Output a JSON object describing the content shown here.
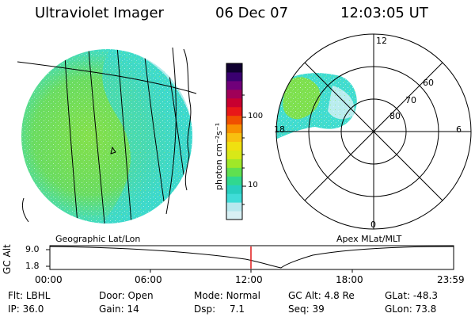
{
  "header": {
    "instrument": "Ultraviolet Imager",
    "date": "06 Dec 07",
    "time": "12:03:05 UT"
  },
  "left_panel": {
    "projection_label": "Geographic Lat/Lon"
  },
  "right_panel": {
    "projection_label": "Apex MLat/MLT",
    "mlt_labels": {
      "top": "12",
      "left": "18",
      "right": "6",
      "bottom": "0"
    },
    "lat_labels": [
      "60",
      "70",
      "80"
    ]
  },
  "colorbar": {
    "unit_label": "photon cm⁻²s⁻¹",
    "ticks": [
      "100",
      "10"
    ],
    "colors": [
      "#d8f0f4",
      "#b8e8ee",
      "#40dcd8",
      "#28cfc0",
      "#30d890",
      "#60e050",
      "#a0e828",
      "#d8e818",
      "#f0e010",
      "#f8c010",
      "#f89000",
      "#f05000",
      "#e81818",
      "#c80030",
      "#a00058",
      "#70007a",
      "#3a0070",
      "#100030"
    ]
  },
  "timeline": {
    "y_axis_label": "GC Alt",
    "y_ticks": [
      "9.0",
      "1.8"
    ],
    "x_ticks": [
      "00:00",
      "06:00",
      "12:00",
      "18:00",
      "23:59"
    ],
    "marker_color": "#e01818"
  },
  "footer": {
    "flt_label": "Flt:",
    "flt_value": "LBHL",
    "ip_label": "IP:",
    "ip_value": "36.0",
    "door_label": "Door:",
    "door_value": "Open",
    "gain_label": "Gain:",
    "gain_value": "14",
    "mode_label": "Mode:",
    "mode_value": "Normal",
    "dsp_label": "Dsp:",
    "dsp_value": "7.1",
    "gcalt_label": "GC Alt:",
    "gcalt_value": "4.8 Re",
    "seq_label": "Seq:",
    "seq_value": "39",
    "glat_label": "GLat:",
    "glat_value": "-48.3",
    "glon_label": "GLon:",
    "glon_value": "73.8"
  }
}
